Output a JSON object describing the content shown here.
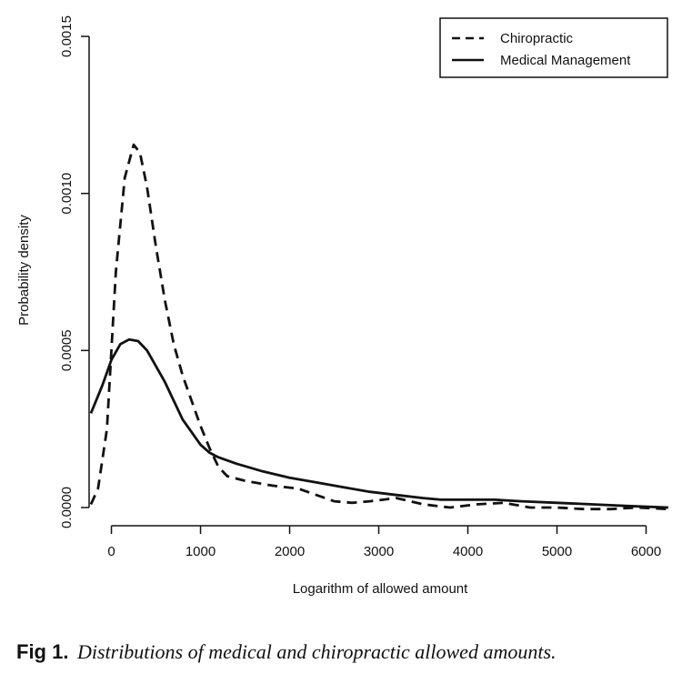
{
  "chart_data": {
    "type": "line",
    "title": "",
    "xlabel": "Logarithm of allowed amount",
    "ylabel": "Probability density",
    "xlim": [
      -230,
      6250
    ],
    "ylim": [
      0,
      0.0015
    ],
    "xticks": [
      0,
      1000,
      2000,
      3000,
      4000,
      5000,
      6000
    ],
    "xtick_labels": [
      "0",
      "1000",
      "2000",
      "3000",
      "4000",
      "5000",
      "6000"
    ],
    "yticks": [
      0,
      0.0005,
      0.001,
      0.0015
    ],
    "ytick_labels": [
      "0.0000",
      "0.0005",
      "0.0010",
      "0.0015"
    ],
    "grid": false,
    "legend_position": "top-right",
    "series": [
      {
        "name": "Chiropractic",
        "style": "dashed",
        "x": [
          -230,
          -150,
          -50,
          50,
          150,
          250,
          320,
          400,
          500,
          600,
          700,
          800,
          900,
          1000,
          1100,
          1200,
          1300,
          1500,
          1800,
          2100,
          2300,
          2500,
          2700,
          2900,
          3200,
          3500,
          3800,
          4100,
          4400,
          4700,
          5000,
          5300,
          5600,
          5900,
          6250
        ],
        "values": [
          1e-05,
          6e-05,
          0.00025,
          0.00075,
          0.00105,
          0.001155,
          0.00113,
          0.00102,
          0.00083,
          0.00066,
          0.00052,
          0.00042,
          0.00034,
          0.00026,
          0.00019,
          0.00013,
          0.0001,
          8.5e-05,
          7e-05,
          6e-05,
          4e-05,
          2e-05,
          1.5e-05,
          2e-05,
          3e-05,
          1e-05,
          0.0,
          1e-05,
          1.5e-05,
          0.0,
          0.0,
          -5e-06,
          -5e-06,
          0.0,
          -5e-06
        ]
      },
      {
        "name": "Medical Management",
        "style": "solid",
        "x": [
          -230,
          -100,
          0,
          100,
          200,
          300,
          400,
          500,
          600,
          700,
          800,
          900,
          1000,
          1100,
          1200,
          1400,
          1700,
          2000,
          2300,
          2600,
          2900,
          3200,
          3500,
          3700,
          4000,
          4300,
          4600,
          5000,
          5400,
          5800,
          6250
        ],
        "values": [
          0.0003,
          0.00039,
          0.00047,
          0.00052,
          0.000535,
          0.00053,
          0.0005,
          0.00045,
          0.0004,
          0.00034,
          0.00028,
          0.00024,
          0.0002,
          0.000175,
          0.00016,
          0.00014,
          0.000115,
          9.5e-05,
          8e-05,
          6.5e-05,
          5e-05,
          4e-05,
          3e-05,
          2.5e-05,
          2.5e-05,
          2.5e-05,
          2e-05,
          1.5e-05,
          1e-05,
          5e-06,
          0.0
        ]
      }
    ]
  },
  "caption": {
    "label": "Fig 1.",
    "text": "Distributions of medical and chiropractic allowed amounts."
  }
}
